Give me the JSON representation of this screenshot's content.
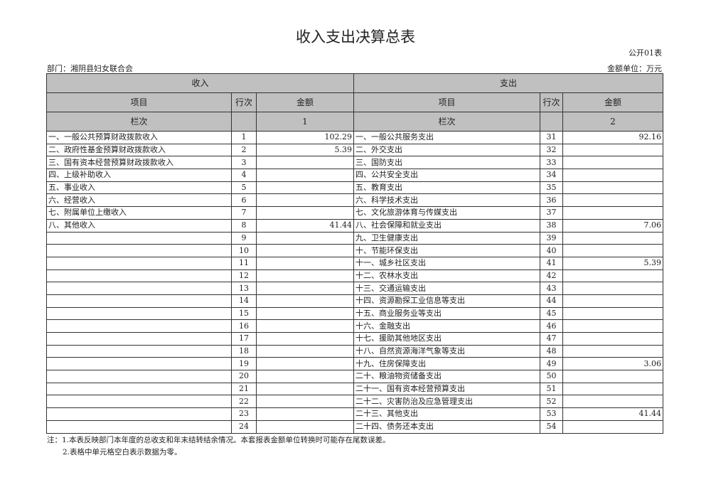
{
  "title": "收入支出决算总表",
  "form_code": "公开01表",
  "department": "部门：湘阴县妇女联合会",
  "unit": "金额单位：万元",
  "header": {
    "income": "收入",
    "expense": "支出",
    "item": "项目",
    "row_no": "行次",
    "amount": "金额",
    "column_label": "栏次",
    "col1": "1",
    "col2": "2"
  },
  "income_rows": [
    {
      "item": "一、一般公共预算财政拨款收入",
      "no": "1",
      "amount": "102.29"
    },
    {
      "item": "二、政府性基金预算财政拨款收入",
      "no": "2",
      "amount": "5.39"
    },
    {
      "item": "三、国有资本经营预算财政拨款收入",
      "no": "3",
      "amount": ""
    },
    {
      "item": "四、上级补助收入",
      "no": "4",
      "amount": ""
    },
    {
      "item": "五、事业收入",
      "no": "5",
      "amount": ""
    },
    {
      "item": "六、经营收入",
      "no": "6",
      "amount": ""
    },
    {
      "item": "七、附属单位上缴收入",
      "no": "7",
      "amount": ""
    },
    {
      "item": "八、其他收入",
      "no": "8",
      "amount": "41.44"
    },
    {
      "item": "",
      "no": "9",
      "amount": ""
    },
    {
      "item": "",
      "no": "10",
      "amount": ""
    },
    {
      "item": "",
      "no": "11",
      "amount": ""
    },
    {
      "item": "",
      "no": "12",
      "amount": ""
    },
    {
      "item": "",
      "no": "13",
      "amount": ""
    },
    {
      "item": "",
      "no": "14",
      "amount": ""
    },
    {
      "item": "",
      "no": "15",
      "amount": ""
    },
    {
      "item": "",
      "no": "16",
      "amount": ""
    },
    {
      "item": "",
      "no": "17",
      "amount": ""
    },
    {
      "item": "",
      "no": "18",
      "amount": ""
    },
    {
      "item": "",
      "no": "19",
      "amount": ""
    },
    {
      "item": "",
      "no": "20",
      "amount": ""
    },
    {
      "item": "",
      "no": "21",
      "amount": ""
    },
    {
      "item": "",
      "no": "22",
      "amount": ""
    },
    {
      "item": "",
      "no": "23",
      "amount": ""
    },
    {
      "item": "",
      "no": "24",
      "amount": ""
    }
  ],
  "expense_rows": [
    {
      "item": "一、一般公共服务支出",
      "no": "31",
      "amount": "92.16"
    },
    {
      "item": "二、外交支出",
      "no": "32",
      "amount": ""
    },
    {
      "item": "三、国防支出",
      "no": "33",
      "amount": ""
    },
    {
      "item": "四、公共安全支出",
      "no": "34",
      "amount": ""
    },
    {
      "item": "五、教育支出",
      "no": "35",
      "amount": ""
    },
    {
      "item": "六、科学技术支出",
      "no": "36",
      "amount": ""
    },
    {
      "item": "七、文化旅游体育与传媒支出",
      "no": "37",
      "amount": ""
    },
    {
      "item": "八、社会保障和就业支出",
      "no": "38",
      "amount": "7.06"
    },
    {
      "item": "九、卫生健康支出",
      "no": "39",
      "amount": ""
    },
    {
      "item": "十、节能环保支出",
      "no": "40",
      "amount": ""
    },
    {
      "item": "十一、城乡社区支出",
      "no": "41",
      "amount": "5.39"
    },
    {
      "item": "十二、农林水支出",
      "no": "42",
      "amount": ""
    },
    {
      "item": "十三、交通运输支出",
      "no": "43",
      "amount": ""
    },
    {
      "item": "十四、资源勘探工业信息等支出",
      "no": "44",
      "amount": ""
    },
    {
      "item": "十五、商业服务业等支出",
      "no": "45",
      "amount": ""
    },
    {
      "item": "十六、金融支出",
      "no": "46",
      "amount": ""
    },
    {
      "item": "十七、援助其他地区支出",
      "no": "47",
      "amount": ""
    },
    {
      "item": "十八、自然资源海洋气象等支出",
      "no": "48",
      "amount": ""
    },
    {
      "item": "十九、住房保障支出",
      "no": "49",
      "amount": "3.06"
    },
    {
      "item": "二十、粮油物资储备支出",
      "no": "50",
      "amount": ""
    },
    {
      "item": "二十一、国有资本经营预算支出",
      "no": "51",
      "amount": ""
    },
    {
      "item": "二十二、灾害防治及应急管理支出",
      "no": "52",
      "amount": ""
    },
    {
      "item": "二十三、其他支出",
      "no": "53",
      "amount": "41.44"
    },
    {
      "item": "二十四、债务还本支出",
      "no": "54",
      "amount": ""
    }
  ],
  "notes": [
    "注：1.本表反映部门本年度的总收支和年末结转结余情况。本套报表金额单位转换时可能存在尾数误差。",
    "2.表格中单元格空白表示数据为零。"
  ]
}
